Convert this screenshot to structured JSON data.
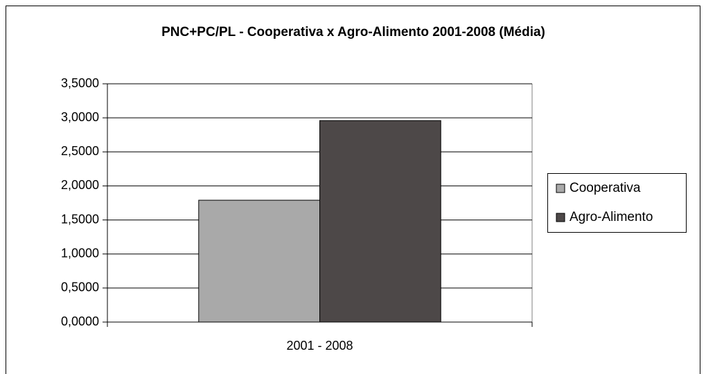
{
  "chart_data": {
    "type": "bar",
    "title": "PNC+PC/PL - Cooperativa x Agro-Alimento 2001-2008 (Média)",
    "categories": [
      "2001 - 2008"
    ],
    "series": [
      {
        "name": "Cooperativa",
        "color": "#a9a9a9",
        "values": [
          1.79
        ]
      },
      {
        "name": "Agro-Alimento",
        "color": "#4d4848",
        "values": [
          2.96
        ]
      }
    ],
    "ylim": [
      0,
      3.5
    ],
    "yticks": [
      {
        "value": 0,
        "label": "0,0000"
      },
      {
        "value": 0.5,
        "label": "0,5000"
      },
      {
        "value": 1,
        "label": "1,0000"
      },
      {
        "value": 1.5,
        "label": "1,5000"
      },
      {
        "value": 2,
        "label": "2,0000"
      },
      {
        "value": 2.5,
        "label": "2,5000"
      },
      {
        "value": 3,
        "label": "3,0000"
      },
      {
        "value": 3.5,
        "label": "3,5000"
      }
    ],
    "grid": true,
    "legend": "right"
  }
}
